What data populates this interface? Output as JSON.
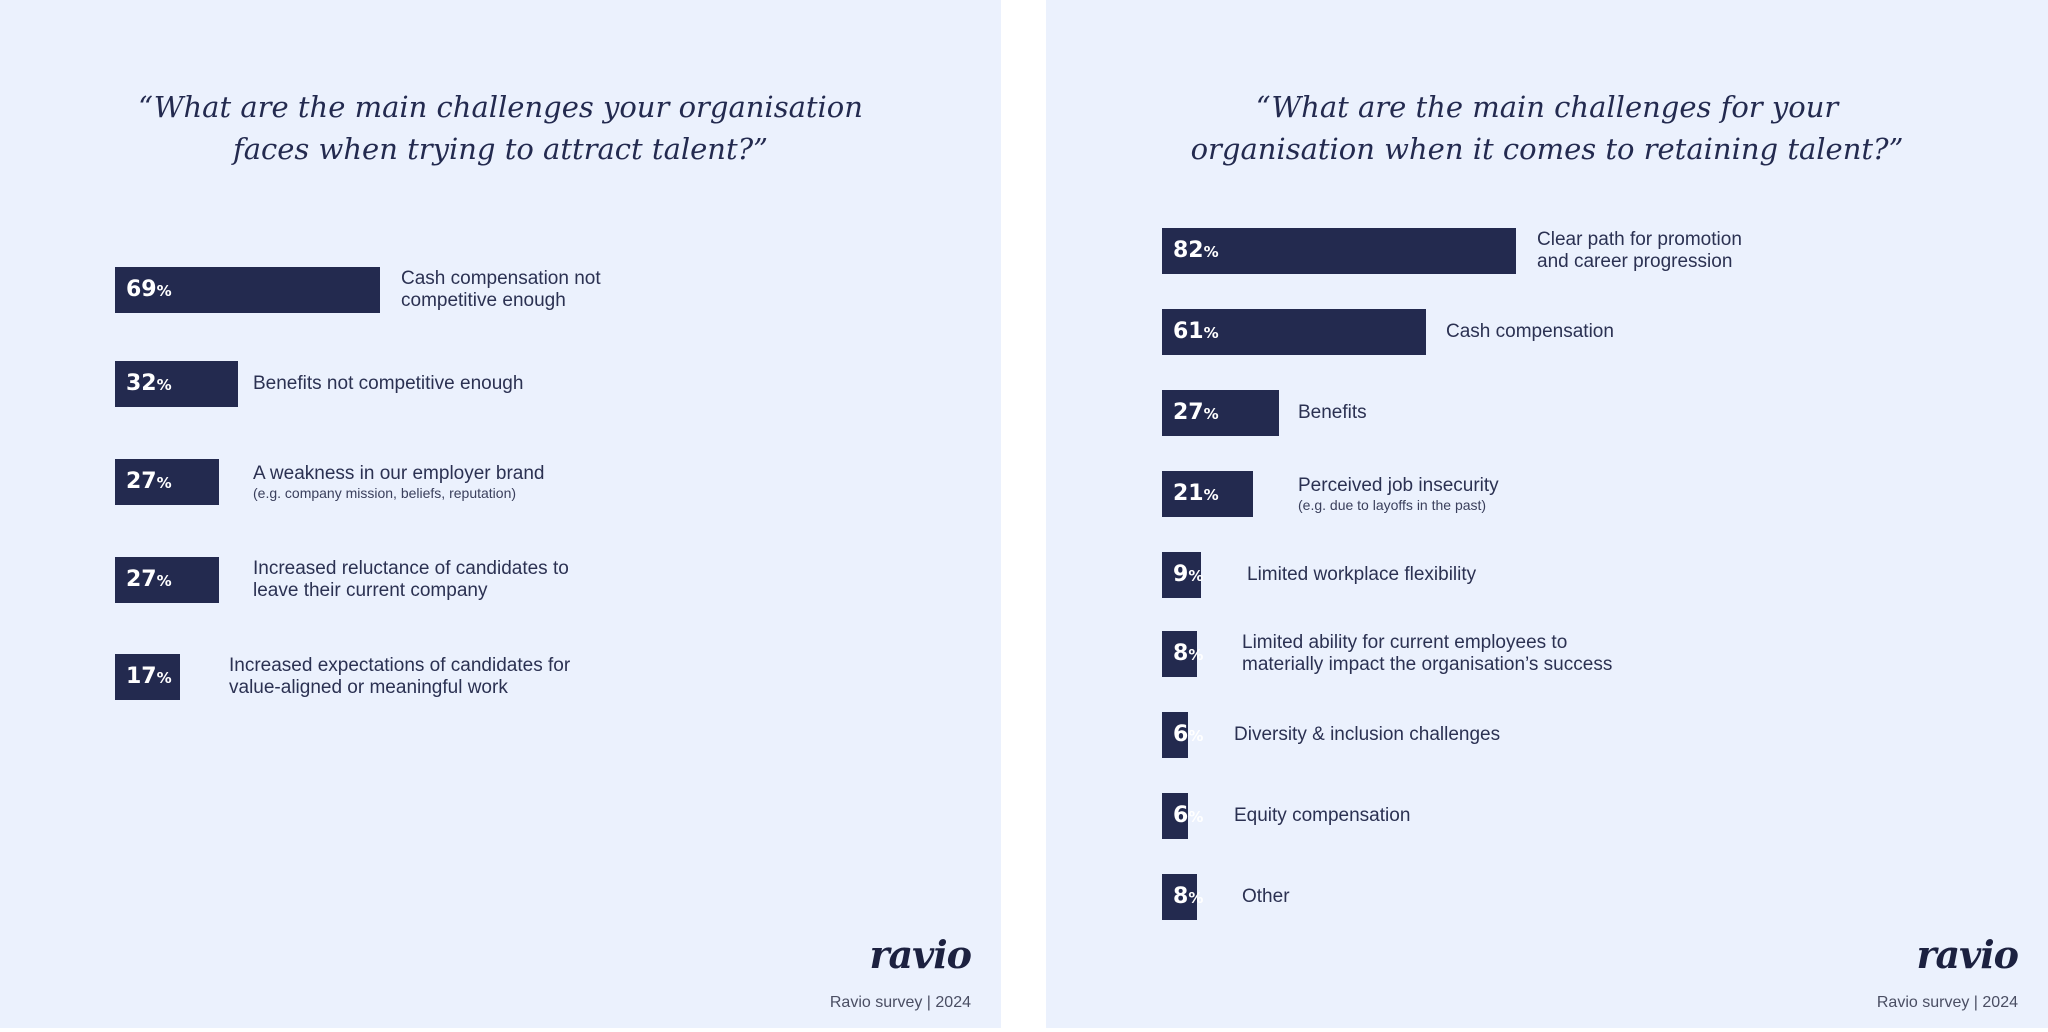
{
  "colors": {
    "bar": "#232a4f",
    "background": "#ebf1fd",
    "text": "#2b3152"
  },
  "chart_data": [
    {
      "type": "bar",
      "orientation": "horizontal",
      "title": [
        "“What are the main challenges your organisation",
        "faces when trying to attract talent?”"
      ],
      "unit": "%",
      "categories": [
        {
          "label": [
            "Cash compensation not",
            "competitive enough"
          ],
          "note": ""
        },
        {
          "label": [
            "Benefits not competitive enough"
          ],
          "note": ""
        },
        {
          "label": [
            "A weakness in our employer brand"
          ],
          "note": "(e.g. company mission, beliefs, reputation)"
        },
        {
          "label": [
            "Increased reluctance of candidates to",
            "leave their current company"
          ],
          "note": ""
        },
        {
          "label": [
            "Increased expectations of candidates for",
            "value-aligned or meaningful work"
          ],
          "note": ""
        }
      ],
      "values": [
        69,
        32,
        27,
        27,
        17
      ],
      "logo": "ravio",
      "footer": "Ravio survey | 2024"
    },
    {
      "type": "bar",
      "orientation": "horizontal",
      "title": [
        "“What are the main challenges for your",
        "organisation when it comes to retaining talent?”"
      ],
      "unit": "%",
      "categories": [
        {
          "label": [
            "Clear path for promotion",
            "and career progression"
          ],
          "note": ""
        },
        {
          "label": [
            "Cash compensation"
          ],
          "note": ""
        },
        {
          "label": [
            "Benefits"
          ],
          "note": ""
        },
        {
          "label": [
            "Perceived job insecurity"
          ],
          "note": "(e.g. due to layoffs in the past)"
        },
        {
          "label": [
            "Limited workplace flexibility"
          ],
          "note": ""
        },
        {
          "label": [
            "Limited ability for current employees to",
            "materially impact the organisation’s success"
          ],
          "note": ""
        },
        {
          "label": [
            "Diversity & inclusion challenges"
          ],
          "note": ""
        },
        {
          "label": [
            "Equity compensation"
          ],
          "note": ""
        },
        {
          "label": [
            "Other"
          ],
          "note": ""
        }
      ],
      "values": [
        82,
        61,
        27,
        21,
        9,
        8,
        6,
        6,
        8
      ],
      "logo": "ravio",
      "footer": "Ravio survey | 2024"
    }
  ]
}
